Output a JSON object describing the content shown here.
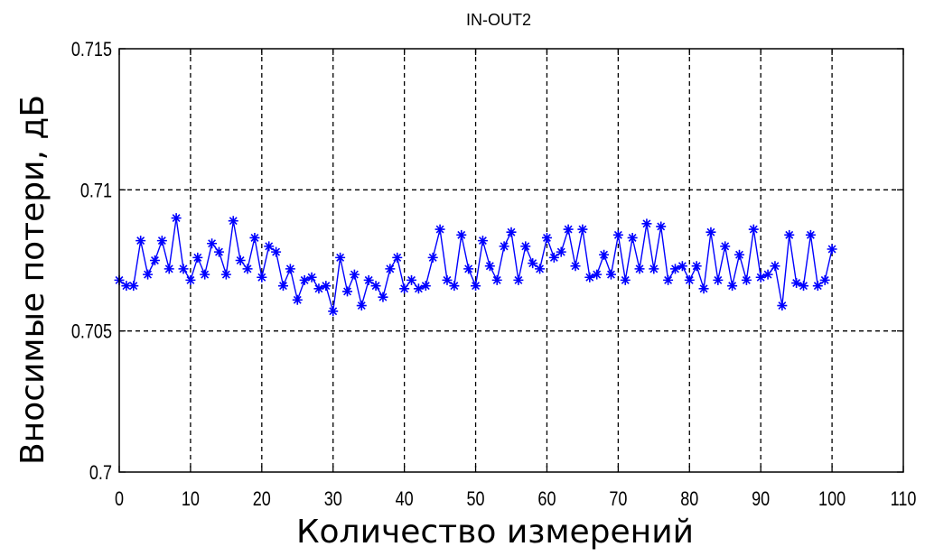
{
  "chart_data": {
    "type": "line",
    "title": "IN-OUT2",
    "xlabel": "Количество измерений",
    "ylabel": "Вносимые потери, дБ",
    "xlim": [
      0,
      110
    ],
    "ylim": [
      0.7,
      0.715
    ],
    "xticks": [
      0,
      10,
      20,
      30,
      40,
      50,
      60,
      70,
      80,
      90,
      100,
      110
    ],
    "yticks": [
      0.7,
      0.705,
      0.71,
      0.715
    ],
    "xtick_labels": [
      "0",
      "10",
      "20",
      "30",
      "40",
      "50",
      "60",
      "70",
      "80",
      "90",
      "100",
      "110"
    ],
    "ytick_labels": [
      "0.7",
      "0.705",
      "0.71",
      "0.715"
    ],
    "grid": true,
    "series": [
      {
        "color": "#0000ff",
        "marker": "asterisk",
        "x": [
          0,
          1,
          2,
          3,
          4,
          5,
          6,
          7,
          8,
          9,
          10,
          11,
          12,
          13,
          14,
          15,
          16,
          17,
          18,
          19,
          20,
          21,
          22,
          23,
          24,
          25,
          26,
          27,
          28,
          29,
          30,
          31,
          32,
          33,
          34,
          35,
          36,
          37,
          38,
          39,
          40,
          41,
          42,
          43,
          44,
          45,
          46,
          47,
          48,
          49,
          50,
          51,
          52,
          53,
          54,
          55,
          56,
          57,
          58,
          59,
          60,
          61,
          62,
          63,
          64,
          65,
          66,
          67,
          68,
          69,
          70,
          71,
          72,
          73,
          74,
          75,
          76,
          77,
          78,
          79,
          80,
          81,
          82,
          83,
          84,
          85,
          86,
          87,
          88,
          89,
          90,
          91,
          92,
          93,
          94,
          95,
          96,
          97,
          98,
          99,
          100
        ],
        "values": [
          0.7068,
          0.7066,
          0.7066,
          0.7082,
          0.707,
          0.7075,
          0.7082,
          0.7072,
          0.709,
          0.7072,
          0.7068,
          0.7076,
          0.707,
          0.7081,
          0.7078,
          0.707,
          0.7089,
          0.7075,
          0.7072,
          0.7083,
          0.7069,
          0.708,
          0.7078,
          0.7066,
          0.7072,
          0.7061,
          0.7068,
          0.7069,
          0.7065,
          0.7066,
          0.7057,
          0.7076,
          0.7064,
          0.707,
          0.7059,
          0.7068,
          0.7066,
          0.7062,
          0.7072,
          0.7076,
          0.7065,
          0.7068,
          0.7065,
          0.7066,
          0.7076,
          0.7086,
          0.7068,
          0.7066,
          0.7084,
          0.7072,
          0.7066,
          0.7082,
          0.7073,
          0.7068,
          0.708,
          0.7085,
          0.7068,
          0.708,
          0.7074,
          0.7072,
          0.7083,
          0.7076,
          0.7078,
          0.7086,
          0.7073,
          0.7086,
          0.7069,
          0.707,
          0.7077,
          0.707,
          0.7084,
          0.7068,
          0.7083,
          0.7072,
          0.7088,
          0.7072,
          0.7087,
          0.7068,
          0.7072,
          0.7073,
          0.7068,
          0.7073,
          0.7065,
          0.7085,
          0.7068,
          0.708,
          0.7066,
          0.7077,
          0.7068,
          0.7086,
          0.7069,
          0.707,
          0.7073,
          0.7059,
          0.7084,
          0.7067,
          0.7066,
          0.7084,
          0.7066,
          0.7068,
          0.7079
        ]
      }
    ]
  }
}
